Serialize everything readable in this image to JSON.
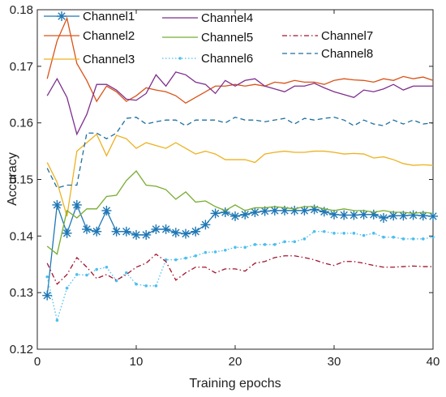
{
  "chart_data": {
    "type": "line",
    "title": "",
    "xlabel": "Training epochs",
    "ylabel": "Accuracy",
    "xlim": [
      0,
      40
    ],
    "ylim": [
      0.12,
      0.18
    ],
    "xticks": [
      0,
      10,
      20,
      30,
      40
    ],
    "xtick_labels": [
      "0",
      "10",
      "20",
      "30",
      "40"
    ],
    "yticks": [
      0.12,
      0.13,
      0.14,
      0.15,
      0.16,
      0.17,
      0.18
    ],
    "ytick_labels": [
      "0.12",
      "0.13",
      "0.14",
      "0.15",
      "0.16",
      "0.17",
      "0.18"
    ],
    "grid": false,
    "legend_position": "top",
    "x": [
      1,
      2,
      3,
      4,
      5,
      6,
      7,
      8,
      9,
      10,
      11,
      12,
      13,
      14,
      15,
      16,
      17,
      18,
      19,
      20,
      21,
      22,
      23,
      24,
      25,
      26,
      27,
      28,
      29,
      30,
      31,
      32,
      33,
      34,
      35,
      36,
      37,
      38,
      39,
      40
    ],
    "series": [
      {
        "name": "Channel1",
        "color": "#1f77b4",
        "dash": "solid",
        "marker": "asterisk",
        "values": [
          0.1295,
          0.1455,
          0.1405,
          0.1455,
          0.1412,
          0.1408,
          0.1445,
          0.1408,
          0.1408,
          0.1402,
          0.1402,
          0.1412,
          0.1412,
          0.1406,
          0.1404,
          0.1408,
          0.142,
          0.144,
          0.1442,
          0.1435,
          0.1438,
          0.1442,
          0.1444,
          0.1445,
          0.1445,
          0.1445,
          0.1445,
          0.1447,
          0.1443,
          0.1438,
          0.1437,
          0.1437,
          0.1438,
          0.1438,
          0.1432,
          0.1436,
          0.1436,
          0.1437,
          0.1436,
          0.1435
        ]
      },
      {
        "name": "Channel2",
        "color": "#d95319",
        "dash": "solid",
        "marker": "none",
        "values": [
          0.1678,
          0.1745,
          0.1785,
          0.1705,
          0.1675,
          0.1638,
          0.1665,
          0.1655,
          0.1638,
          0.1648,
          0.1662,
          0.1658,
          0.1655,
          0.1648,
          0.1635,
          0.1645,
          0.1655,
          0.1665,
          0.1665,
          0.1668,
          0.1665,
          0.1668,
          0.1665,
          0.1672,
          0.167,
          0.1675,
          0.1672,
          0.1672,
          0.1668,
          0.1675,
          0.1678,
          0.1676,
          0.1675,
          0.1672,
          0.1678,
          0.1675,
          0.1682,
          0.1678,
          0.1681,
          0.1675
        ]
      },
      {
        "name": "Channel3",
        "color": "#edb120",
        "dash": "solid",
        "marker": "none",
        "values": [
          0.153,
          0.1495,
          0.1435,
          0.155,
          0.1565,
          0.158,
          0.1542,
          0.1578,
          0.1572,
          0.1555,
          0.1565,
          0.156,
          0.1555,
          0.1565,
          0.1555,
          0.1545,
          0.155,
          0.1545,
          0.1535,
          0.1535,
          0.1535,
          0.153,
          0.1545,
          0.1548,
          0.155,
          0.1548,
          0.1548,
          0.155,
          0.155,
          0.1548,
          0.1545,
          0.1546,
          0.1545,
          0.1538,
          0.154,
          0.1535,
          0.1528,
          0.1525,
          0.1526,
          0.1525
        ]
      },
      {
        "name": "Channel4",
        "color": "#7e2f8e",
        "dash": "solid",
        "marker": "none",
        "values": [
          0.1648,
          0.1678,
          0.1645,
          0.158,
          0.1615,
          0.1668,
          0.1668,
          0.1658,
          0.1642,
          0.164,
          0.1652,
          0.1685,
          0.1665,
          0.169,
          0.1685,
          0.1672,
          0.1668,
          0.1652,
          0.1675,
          0.1665,
          0.1675,
          0.1678,
          0.1665,
          0.166,
          0.1655,
          0.1665,
          0.1665,
          0.167,
          0.1662,
          0.1655,
          0.165,
          0.1645,
          0.1658,
          0.1655,
          0.166,
          0.1668,
          0.1658,
          0.1665,
          0.1665,
          0.1665
        ]
      },
      {
        "name": "Channel5",
        "color": "#77ac30",
        "dash": "solid",
        "marker": "none",
        "values": [
          0.1382,
          0.1368,
          0.1445,
          0.1432,
          0.1448,
          0.1448,
          0.147,
          0.1472,
          0.1498,
          0.1515,
          0.149,
          0.1488,
          0.1482,
          0.1465,
          0.1478,
          0.146,
          0.1462,
          0.1452,
          0.1445,
          0.1455,
          0.1445,
          0.145,
          0.145,
          0.1452,
          0.145,
          0.1448,
          0.1452,
          0.1452,
          0.1448,
          0.1445,
          0.1448,
          0.1445,
          0.1445,
          0.1442,
          0.1445,
          0.1442,
          0.1442,
          0.144,
          0.1442,
          0.144
        ]
      },
      {
        "name": "Channel6",
        "color": "#4dbeee",
        "dash": "dotted",
        "marker": "dot",
        "values": [
          0.1328,
          0.1251,
          0.1308,
          0.1332,
          0.1331,
          0.1341,
          0.1345,
          0.1321,
          0.1335,
          0.1315,
          0.1312,
          0.1312,
          0.1358,
          0.1358,
          0.1361,
          0.1365,
          0.1371,
          0.1372,
          0.1375,
          0.138,
          0.138,
          0.1385,
          0.1385,
          0.1385,
          0.139,
          0.139,
          0.1395,
          0.1408,
          0.1408,
          0.1405,
          0.1405,
          0.1405,
          0.1401,
          0.1405,
          0.1398,
          0.1398,
          0.1395,
          0.1395,
          0.1395,
          0.1398
        ]
      },
      {
        "name": "Channel7",
        "color": "#a2142f",
        "dash": "dashdot",
        "marker": "none",
        "values": [
          0.1352,
          0.1315,
          0.1332,
          0.1362,
          0.1345,
          0.1325,
          0.1332,
          0.1322,
          0.1332,
          0.1345,
          0.1352,
          0.1368,
          0.1355,
          0.1322,
          0.1335,
          0.1345,
          0.1345,
          0.1335,
          0.1342,
          0.1342,
          0.1338,
          0.1352,
          0.1355,
          0.1362,
          0.1365,
          0.1365,
          0.1362,
          0.1358,
          0.1352,
          0.1348,
          0.1355,
          0.1355,
          0.1352,
          0.1348,
          0.1345,
          0.1345,
          0.1346,
          0.1347,
          0.1346,
          0.1346
        ]
      },
      {
        "name": "Channel8",
        "color": "#1f6f9f",
        "dash": "dashed",
        "marker": "none",
        "values": [
          0.152,
          0.1485,
          0.149,
          0.149,
          0.1582,
          0.1582,
          0.1572,
          0.1582,
          0.1608,
          0.161,
          0.1598,
          0.1602,
          0.1605,
          0.1605,
          0.1595,
          0.1605,
          0.1605,
          0.1605,
          0.16,
          0.161,
          0.1605,
          0.1605,
          0.1602,
          0.1605,
          0.1608,
          0.1598,
          0.1608,
          0.1605,
          0.1608,
          0.161,
          0.1605,
          0.1595,
          0.1605,
          0.1598,
          0.1595,
          0.1605,
          0.1598,
          0.1605,
          0.1598,
          0.16
        ]
      }
    ]
  }
}
